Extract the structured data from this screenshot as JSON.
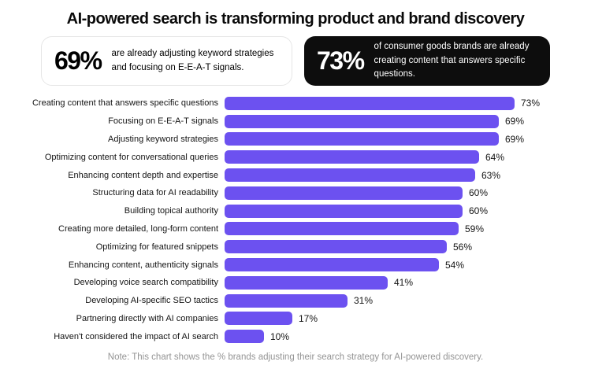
{
  "title": "AI-powered search is transforming product and brand discovery",
  "callouts": [
    {
      "stat": "69%",
      "text": "are already adjusting keyword strategies and focusing on E-E-A-T signals.",
      "theme": "light"
    },
    {
      "stat": "73%",
      "text": "of consumer goods brands are already creating content that answers specific questions.",
      "theme": "dark"
    }
  ],
  "chart_data": {
    "type": "bar",
    "orientation": "horizontal",
    "title": "",
    "xlabel": "",
    "ylabel": "",
    "xlim": [
      0,
      75
    ],
    "grid": false,
    "legend": false,
    "value_suffix": "%",
    "categories": [
      "Creating content that answers specific questions",
      "Focusing on E-E-A-T signals",
      "Adjusting keyword strategies",
      "Optimizing content for conversational queries",
      "Enhancing content depth and expertise",
      "Structuring data for AI readability",
      "Building topical authority",
      "Creating more detailed, long-form content",
      "Optimizing for featured snippets",
      "Enhancing content, authenticity signals",
      "Developing voice search compatibility",
      "Developing AI-specific SEO tactics",
      "Partnering directly with AI companies",
      "Haven't considered the impact of AI search"
    ],
    "values": [
      73,
      69,
      69,
      64,
      63,
      60,
      60,
      59,
      56,
      54,
      41,
      31,
      17,
      10
    ]
  },
  "note": "Note: This chart shows the % brands adjusting their search strategy for AI-powered discovery.",
  "colors": {
    "bar": "#6C51F0",
    "card_dark_bg": "#0d0d0d",
    "title_text": "#0a0a0a",
    "note_text": "#949494"
  }
}
